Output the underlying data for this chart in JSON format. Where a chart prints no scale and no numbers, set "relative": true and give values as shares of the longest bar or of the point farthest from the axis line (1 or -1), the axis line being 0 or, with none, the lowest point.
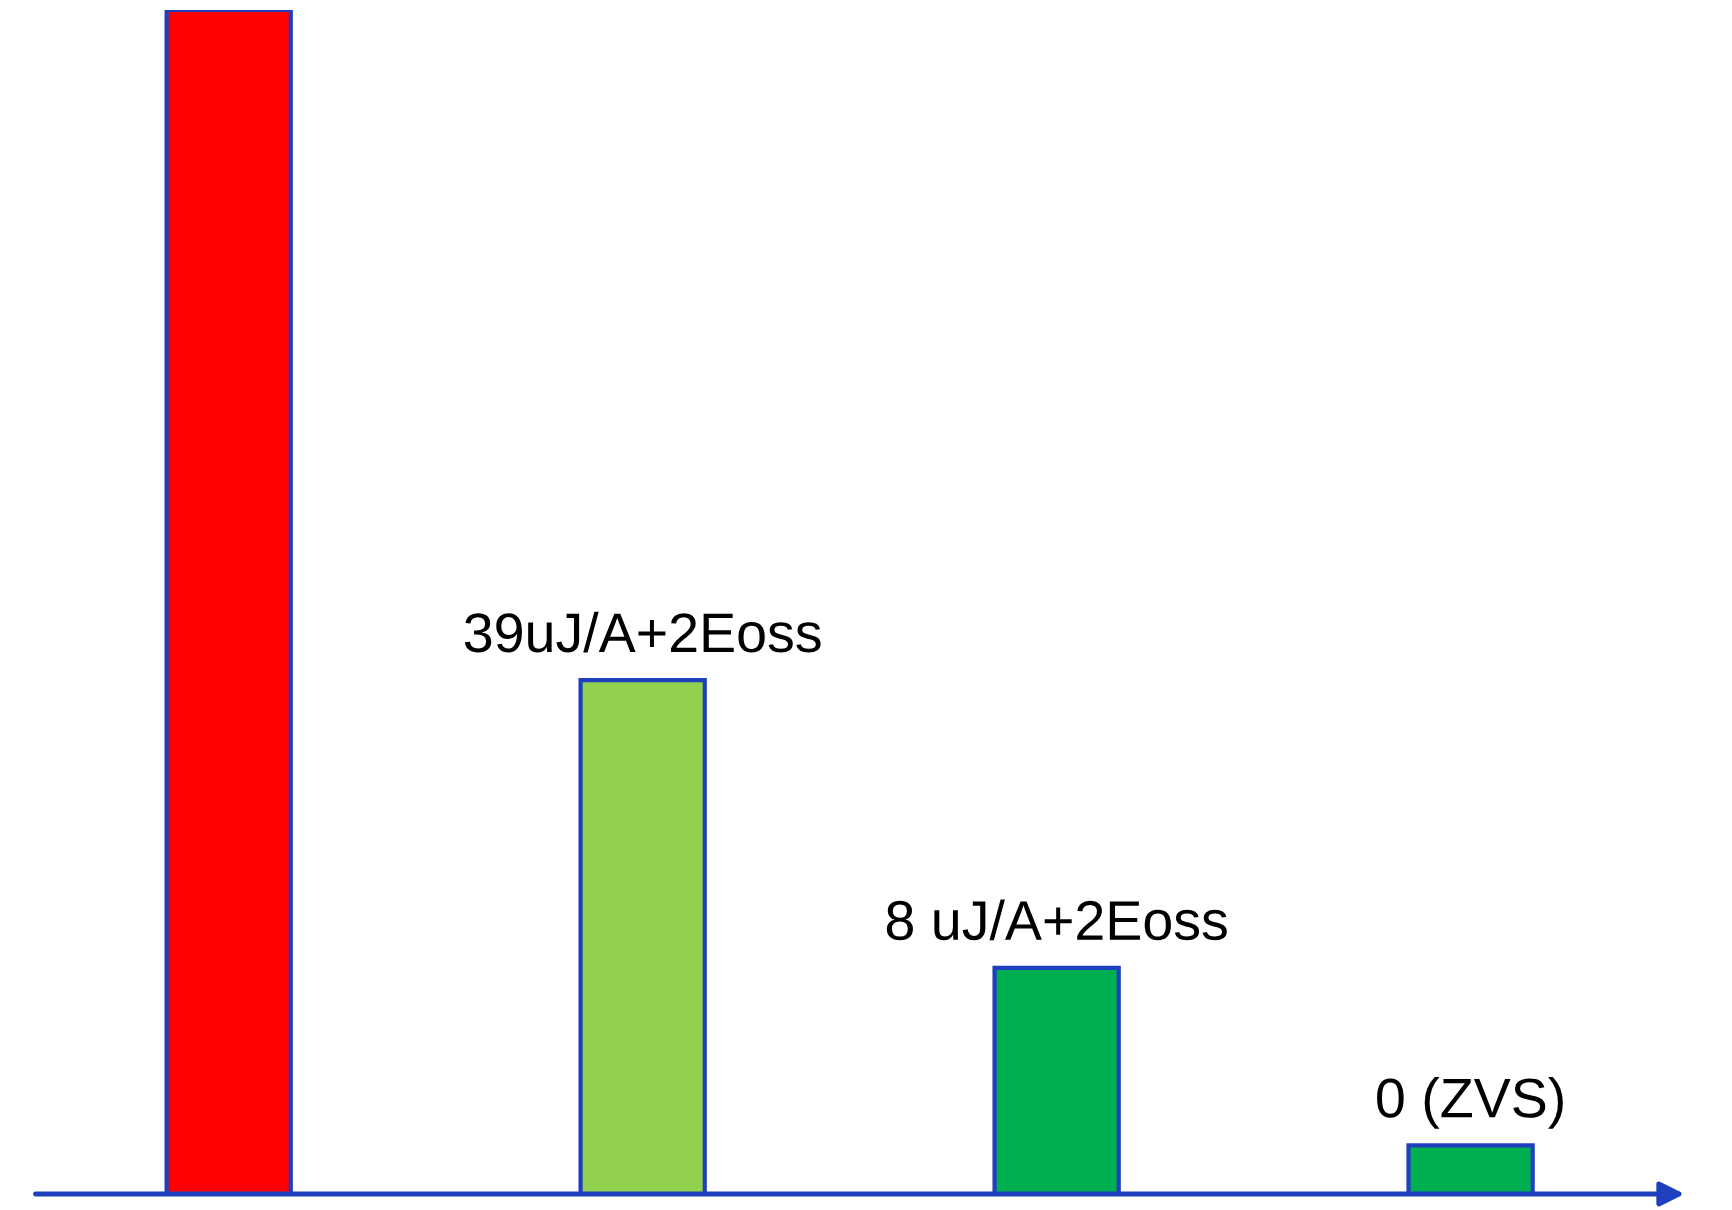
{
  "chart_data": {
    "type": "bar",
    "relative": true,
    "categories": [
      null,
      null,
      null,
      null
    ],
    "values": [
      1,
      0.434,
      0.191,
      0.041
    ],
    "colors": [
      "#ff0000",
      "#92d050",
      "#00b050",
      "#00b050"
    ],
    "annotations": [
      {
        "text": "39uJ/A+2Eoss",
        "y": 0.434
      },
      {
        "text": "8 uJ/A+2Eoss",
        "y": 0.191
      },
      {
        "text": "0 (ZVS)",
        "y": 0.041
      }
    ]
  }
}
